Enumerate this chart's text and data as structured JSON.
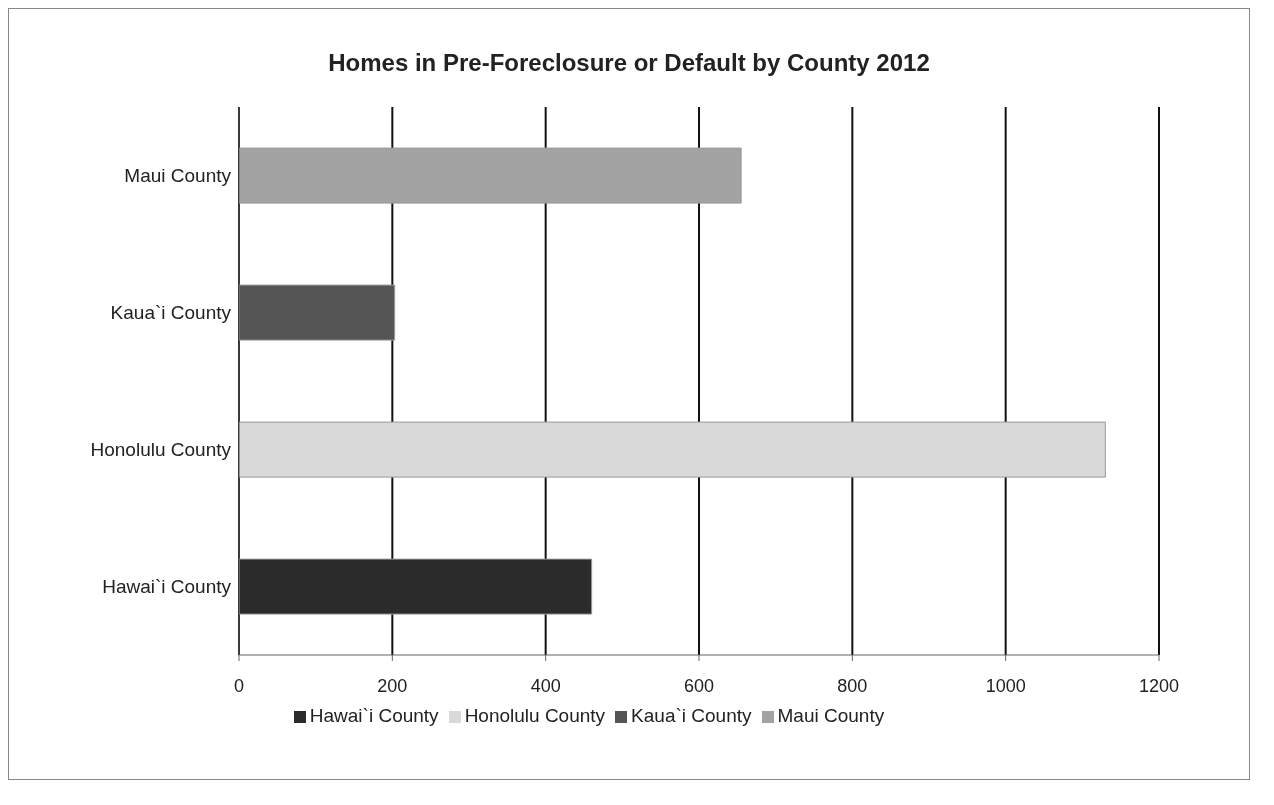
{
  "chart_data": {
    "type": "bar",
    "orientation": "horizontal",
    "stacked": true,
    "title": "Homes in Pre-Foreclosure or Default by County 2012",
    "categories": [
      "Maui County",
      "Kaua`i County",
      "Honolulu County",
      "Hawai`i County"
    ],
    "series": [
      {
        "name": "Hawai`i County",
        "color": "#2b2b2b",
        "values": [
          null,
          null,
          null,
          460
        ]
      },
      {
        "name": "Honolulu County",
        "color": "#d9d9d9",
        "values": [
          null,
          null,
          1130,
          null
        ]
      },
      {
        "name": "Kaua`i County",
        "color": "#555555",
        "values": [
          null,
          203,
          null,
          null
        ]
      },
      {
        "name": "Maui County",
        "color": "#a3a3a3",
        "values": [
          655,
          null,
          null,
          null
        ]
      }
    ],
    "xlim": [
      0,
      1200
    ],
    "xticks": [
      0,
      200,
      400,
      600,
      800,
      1000,
      1200
    ],
    "grid": "x",
    "legend": "bottom"
  }
}
